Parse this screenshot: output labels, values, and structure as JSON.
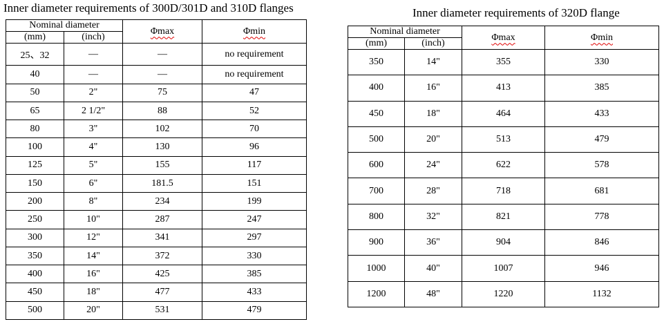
{
  "colors": {
    "background": "#ffffff",
    "text": "#000000",
    "border": "#000000",
    "spellcheck_underline": "#e00000"
  },
  "left_table": {
    "title": "Inner diameter requirements of 300D/301D and 310D flanges",
    "header": {
      "nominal_diameter": "Nominal diameter",
      "mm": "(mm)",
      "inch": "(inch)",
      "phi_max": "Φmax",
      "phi_min": "Φmin"
    },
    "rows": [
      [
        "25、32",
        "—",
        "—",
        "no requirement"
      ],
      [
        "40",
        "—",
        "—",
        "no requirement"
      ],
      [
        "50",
        "2\"",
        "75",
        "47"
      ],
      [
        "65",
        "2 1/2\"",
        "88",
        "52"
      ],
      [
        "80",
        "3\"",
        "102",
        "70"
      ],
      [
        "100",
        "4\"",
        "130",
        "96"
      ],
      [
        "125",
        "5\"",
        "155",
        "117"
      ],
      [
        "150",
        "6\"",
        "181.5",
        "151"
      ],
      [
        "200",
        "8\"",
        "234",
        "199"
      ],
      [
        "250",
        "10\"",
        "287",
        "247"
      ],
      [
        "300",
        "12\"",
        "341",
        "297"
      ],
      [
        "350",
        "14\"",
        "372",
        "330"
      ],
      [
        "400",
        "16\"",
        "425",
        "385"
      ],
      [
        "450",
        "18\"",
        "477",
        "433"
      ],
      [
        "500",
        "20\"",
        "531",
        "479"
      ]
    ]
  },
  "right_table": {
    "title": "Inner diameter requirements of 320D flange",
    "header": {
      "nominal_diameter": "Nominal diameter",
      "mm": "(mm)",
      "inch": "(inch)",
      "phi_max": "Φmax",
      "phi_min": "Φmin"
    },
    "rows": [
      [
        "350",
        "14\"",
        "355",
        "330"
      ],
      [
        "400",
        "16\"",
        "413",
        "385"
      ],
      [
        "450",
        "18\"",
        "464",
        "433"
      ],
      [
        "500",
        "20\"",
        "513",
        "479"
      ],
      [
        "600",
        "24\"",
        "622",
        "578"
      ],
      [
        "700",
        "28\"",
        "718",
        "681"
      ],
      [
        "800",
        "32\"",
        "821",
        "778"
      ],
      [
        "900",
        "36\"",
        "904",
        "846"
      ],
      [
        "1000",
        "40\"",
        "1007",
        "946"
      ],
      [
        "1200",
        "48\"",
        "1220",
        "1132"
      ]
    ]
  }
}
